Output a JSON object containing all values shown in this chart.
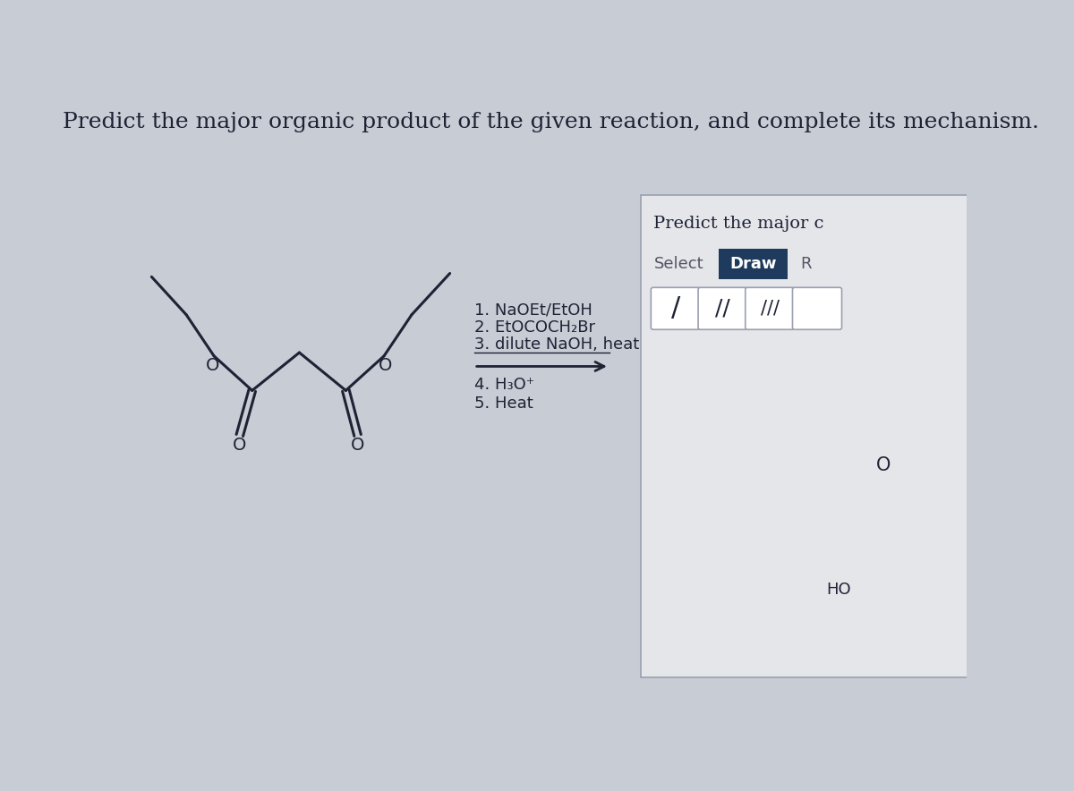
{
  "title": "Predict the major organic product of the given reaction, and complete its mechanism.",
  "bg_color": "#c8ccd4",
  "line_color": "#1e2235",
  "title_fontsize": 18,
  "reaction_steps_line1": "1. NaOEt/EtOH",
  "reaction_steps_line2": "2. EtOCOCH₂Br",
  "reaction_steps_line3": "3. dilute NaOH, heat",
  "reaction_steps_line4": "4. H₃O⁺",
  "reaction_steps_line5": "5. Heat",
  "panel_bg": "#e4e6ea",
  "panel_border": "#9aa0b0",
  "draw_button_bg": "#1e3a5c",
  "draw_button_text": "#ffffff",
  "select_text": "#555566",
  "predict_text": "Predict the major c",
  "ho_label": "HO",
  "o_label": "O"
}
